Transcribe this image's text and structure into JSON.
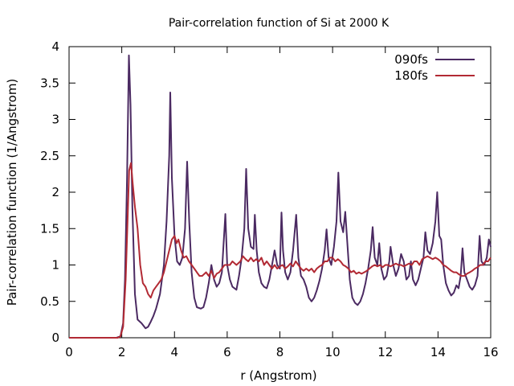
{
  "chart_data": {
    "type": "line",
    "title": "Pair-correlation function of Si at 2000 K",
    "xlabel": "r (Angstrom)",
    "ylabel": "Pair-correlation function (1/Angstrom)",
    "xlim": [
      0,
      16
    ],
    "ylim": [
      0,
      4
    ],
    "xticks": [
      "0",
      "2",
      "4",
      "6",
      "8",
      "10",
      "12",
      "14",
      "16"
    ],
    "yticks": [
      "0",
      "0.5",
      "1",
      "1.5",
      "2",
      "2.5",
      "3",
      "3.5",
      "4"
    ],
    "grid": false,
    "legend_position": "top-right",
    "series": [
      {
        "name": "090fs",
        "color": "#4b2a62",
        "points": [
          [
            0.0,
            0
          ],
          [
            1.8,
            0
          ],
          [
            1.95,
            0.02
          ],
          [
            2.05,
            0.2
          ],
          [
            2.12,
            0.8
          ],
          [
            2.2,
            2.2
          ],
          [
            2.27,
            3.88
          ],
          [
            2.33,
            3.2
          ],
          [
            2.4,
            1.8
          ],
          [
            2.5,
            0.6
          ],
          [
            2.6,
            0.25
          ],
          [
            2.75,
            0.2
          ],
          [
            2.9,
            0.13
          ],
          [
            3.0,
            0.15
          ],
          [
            3.1,
            0.22
          ],
          [
            3.2,
            0.3
          ],
          [
            3.3,
            0.4
          ],
          [
            3.45,
            0.6
          ],
          [
            3.6,
            1.0
          ],
          [
            3.7,
            1.6
          ],
          [
            3.8,
            2.5
          ],
          [
            3.84,
            3.37
          ],
          [
            3.9,
            2.2
          ],
          [
            4.0,
            1.4
          ],
          [
            4.1,
            1.05
          ],
          [
            4.2,
            1.0
          ],
          [
            4.3,
            1.1
          ],
          [
            4.4,
            1.5
          ],
          [
            4.48,
            2.42
          ],
          [
            4.56,
            1.6
          ],
          [
            4.65,
            0.9
          ],
          [
            4.75,
            0.55
          ],
          [
            4.85,
            0.42
          ],
          [
            5.0,
            0.4
          ],
          [
            5.1,
            0.42
          ],
          [
            5.2,
            0.55
          ],
          [
            5.3,
            0.75
          ],
          [
            5.4,
            1.0
          ],
          [
            5.5,
            0.8
          ],
          [
            5.6,
            0.7
          ],
          [
            5.7,
            0.75
          ],
          [
            5.8,
            0.9
          ],
          [
            5.93,
            1.7
          ],
          [
            6.0,
            1.0
          ],
          [
            6.1,
            0.8
          ],
          [
            6.2,
            0.7
          ],
          [
            6.35,
            0.66
          ],
          [
            6.45,
            0.85
          ],
          [
            6.55,
            1.1
          ],
          [
            6.65,
            1.5
          ],
          [
            6.72,
            2.32
          ],
          [
            6.8,
            1.5
          ],
          [
            6.9,
            1.25
          ],
          [
            7.0,
            1.22
          ],
          [
            7.05,
            1.69
          ],
          [
            7.12,
            1.2
          ],
          [
            7.2,
            0.9
          ],
          [
            7.3,
            0.75
          ],
          [
            7.4,
            0.7
          ],
          [
            7.5,
            0.68
          ],
          [
            7.6,
            0.8
          ],
          [
            7.7,
            1.0
          ],
          [
            7.8,
            1.2
          ],
          [
            7.9,
            1.0
          ],
          [
            8.0,
            0.95
          ],
          [
            8.06,
            1.72
          ],
          [
            8.12,
            1.2
          ],
          [
            8.2,
            0.9
          ],
          [
            8.3,
            0.8
          ],
          [
            8.4,
            0.9
          ],
          [
            8.5,
            1.2
          ],
          [
            8.62,
            1.69
          ],
          [
            8.7,
            1.1
          ],
          [
            8.8,
            0.85
          ],
          [
            8.9,
            0.8
          ],
          [
            9.0,
            0.7
          ],
          [
            9.1,
            0.55
          ],
          [
            9.2,
            0.5
          ],
          [
            9.3,
            0.55
          ],
          [
            9.4,
            0.65
          ],
          [
            9.5,
            0.78
          ],
          [
            9.6,
            0.95
          ],
          [
            9.7,
            1.2
          ],
          [
            9.77,
            1.49
          ],
          [
            9.85,
            1.1
          ],
          [
            9.95,
            1.0
          ],
          [
            10.05,
            1.25
          ],
          [
            10.15,
            1.6
          ],
          [
            10.22,
            2.27
          ],
          [
            10.3,
            1.6
          ],
          [
            10.4,
            1.45
          ],
          [
            10.48,
            1.73
          ],
          [
            10.56,
            1.3
          ],
          [
            10.65,
            0.8
          ],
          [
            10.75,
            0.55
          ],
          [
            10.85,
            0.48
          ],
          [
            10.95,
            0.45
          ],
          [
            11.05,
            0.5
          ],
          [
            11.15,
            0.6
          ],
          [
            11.25,
            0.75
          ],
          [
            11.35,
            0.95
          ],
          [
            11.45,
            1.2
          ],
          [
            11.52,
            1.52
          ],
          [
            11.6,
            1.1
          ],
          [
            11.7,
            1.0
          ],
          [
            11.77,
            1.3
          ],
          [
            11.85,
            0.95
          ],
          [
            11.95,
            0.8
          ],
          [
            12.05,
            0.85
          ],
          [
            12.15,
            1.05
          ],
          [
            12.2,
            1.25
          ],
          [
            12.3,
            1.0
          ],
          [
            12.4,
            0.85
          ],
          [
            12.5,
            0.95
          ],
          [
            12.6,
            1.15
          ],
          [
            12.7,
            1.05
          ],
          [
            12.8,
            0.8
          ],
          [
            12.9,
            0.85
          ],
          [
            12.97,
            1.05
          ],
          [
            13.05,
            0.8
          ],
          [
            13.15,
            0.72
          ],
          [
            13.25,
            0.8
          ],
          [
            13.35,
            0.95
          ],
          [
            13.45,
            1.1
          ],
          [
            13.52,
            1.45
          ],
          [
            13.6,
            1.2
          ],
          [
            13.7,
            1.15
          ],
          [
            13.8,
            1.3
          ],
          [
            13.9,
            1.6
          ],
          [
            13.97,
            2.0
          ],
          [
            14.05,
            1.4
          ],
          [
            14.12,
            1.35
          ],
          [
            14.2,
            1.0
          ],
          [
            14.3,
            0.75
          ],
          [
            14.4,
            0.65
          ],
          [
            14.5,
            0.58
          ],
          [
            14.6,
            0.62
          ],
          [
            14.7,
            0.72
          ],
          [
            14.78,
            0.68
          ],
          [
            14.86,
            0.85
          ],
          [
            14.93,
            1.23
          ],
          [
            15.0,
            0.9
          ],
          [
            15.1,
            0.8
          ],
          [
            15.2,
            0.7
          ],
          [
            15.3,
            0.66
          ],
          [
            15.4,
            0.72
          ],
          [
            15.5,
            0.85
          ],
          [
            15.58,
            1.4
          ],
          [
            15.65,
            1.05
          ],
          [
            15.75,
            1.0
          ],
          [
            15.85,
            1.1
          ],
          [
            15.93,
            1.35
          ],
          [
            16.0,
            1.25
          ]
        ]
      },
      {
        "name": "180fs",
        "color": "#b22a34",
        "points": [
          [
            0.0,
            0
          ],
          [
            1.85,
            0
          ],
          [
            1.95,
            0.02
          ],
          [
            2.05,
            0.15
          ],
          [
            2.15,
            0.8
          ],
          [
            2.22,
            1.6
          ],
          [
            2.28,
            2.3
          ],
          [
            2.35,
            2.4
          ],
          [
            2.42,
            2.1
          ],
          [
            2.5,
            1.8
          ],
          [
            2.6,
            1.5
          ],
          [
            2.7,
            1.0
          ],
          [
            2.8,
            0.75
          ],
          [
            2.9,
            0.7
          ],
          [
            3.0,
            0.6
          ],
          [
            3.1,
            0.55
          ],
          [
            3.2,
            0.65
          ],
          [
            3.3,
            0.7
          ],
          [
            3.4,
            0.75
          ],
          [
            3.5,
            0.8
          ],
          [
            3.6,
            0.9
          ],
          [
            3.7,
            1.05
          ],
          [
            3.8,
            1.2
          ],
          [
            3.9,
            1.35
          ],
          [
            4.0,
            1.4
          ],
          [
            4.08,
            1.3
          ],
          [
            4.15,
            1.35
          ],
          [
            4.25,
            1.2
          ],
          [
            4.35,
            1.1
          ],
          [
            4.45,
            1.12
          ],
          [
            4.55,
            1.05
          ],
          [
            4.65,
            1.0
          ],
          [
            4.75,
            0.95
          ],
          [
            4.85,
            0.9
          ],
          [
            4.95,
            0.85
          ],
          [
            5.05,
            0.85
          ],
          [
            5.2,
            0.9
          ],
          [
            5.3,
            0.85
          ],
          [
            5.4,
            0.92
          ],
          [
            5.5,
            0.82
          ],
          [
            5.6,
            0.88
          ],
          [
            5.7,
            0.9
          ],
          [
            5.8,
            0.95
          ],
          [
            5.9,
            1.0
          ],
          [
            6.0,
            1.0
          ],
          [
            6.1,
            1.0
          ],
          [
            6.2,
            1.05
          ],
          [
            6.35,
            1.0
          ],
          [
            6.5,
            1.05
          ],
          [
            6.6,
            1.12
          ],
          [
            6.7,
            1.08
          ],
          [
            6.8,
            1.05
          ],
          [
            6.9,
            1.1
          ],
          [
            7.0,
            1.05
          ],
          [
            7.1,
            1.08
          ],
          [
            7.2,
            1.05
          ],
          [
            7.3,
            1.1
          ],
          [
            7.4,
            1.0
          ],
          [
            7.5,
            1.05
          ],
          [
            7.6,
            1.0
          ],
          [
            7.7,
            0.95
          ],
          [
            7.8,
            1.0
          ],
          [
            7.9,
            0.95
          ],
          [
            8.0,
            0.98
          ],
          [
            8.1,
            1.0
          ],
          [
            8.2,
            0.95
          ],
          [
            8.3,
            0.98
          ],
          [
            8.4,
            1.02
          ],
          [
            8.5,
            0.98
          ],
          [
            8.6,
            1.05
          ],
          [
            8.7,
            1.0
          ],
          [
            8.8,
            0.95
          ],
          [
            8.9,
            0.92
          ],
          [
            9.0,
            0.95
          ],
          [
            9.1,
            0.92
          ],
          [
            9.2,
            0.95
          ],
          [
            9.3,
            0.9
          ],
          [
            9.4,
            0.95
          ],
          [
            9.5,
            0.98
          ],
          [
            9.6,
            1.0
          ],
          [
            9.7,
            1.05
          ],
          [
            9.8,
            1.05
          ],
          [
            9.9,
            1.1
          ],
          [
            10.0,
            1.1
          ],
          [
            10.1,
            1.05
          ],
          [
            10.2,
            1.08
          ],
          [
            10.3,
            1.05
          ],
          [
            10.4,
            1.0
          ],
          [
            10.5,
            0.98
          ],
          [
            10.6,
            0.95
          ],
          [
            10.7,
            0.9
          ],
          [
            10.8,
            0.92
          ],
          [
            10.9,
            0.88
          ],
          [
            11.0,
            0.9
          ],
          [
            11.1,
            0.88
          ],
          [
            11.2,
            0.9
          ],
          [
            11.3,
            0.92
          ],
          [
            11.4,
            0.95
          ],
          [
            11.5,
            0.98
          ],
          [
            11.6,
            1.0
          ],
          [
            11.7,
            0.98
          ],
          [
            11.8,
            1.0
          ],
          [
            11.9,
            0.97
          ],
          [
            12.0,
            1.0
          ],
          [
            12.1,
            1.0
          ],
          [
            12.2,
            0.98
          ],
          [
            12.3,
            1.0
          ],
          [
            12.4,
            1.02
          ],
          [
            12.5,
            1.0
          ],
          [
            12.6,
            1.0
          ],
          [
            12.7,
            0.98
          ],
          [
            12.8,
            1.0
          ],
          [
            12.9,
            1.02
          ],
          [
            13.0,
            1.0
          ],
          [
            13.1,
            1.05
          ],
          [
            13.2,
            1.05
          ],
          [
            13.3,
            1.0
          ],
          [
            13.4,
            1.08
          ],
          [
            13.5,
            1.1
          ],
          [
            13.6,
            1.12
          ],
          [
            13.7,
            1.1
          ],
          [
            13.8,
            1.08
          ],
          [
            13.9,
            1.1
          ],
          [
            14.0,
            1.08
          ],
          [
            14.1,
            1.05
          ],
          [
            14.2,
            1.0
          ],
          [
            14.3,
            0.98
          ],
          [
            14.4,
            0.95
          ],
          [
            14.5,
            0.92
          ],
          [
            14.6,
            0.9
          ],
          [
            14.7,
            0.9
          ],
          [
            14.8,
            0.87
          ],
          [
            14.9,
            0.85
          ],
          [
            15.0,
            0.85
          ],
          [
            15.1,
            0.88
          ],
          [
            15.2,
            0.9
          ],
          [
            15.3,
            0.92
          ],
          [
            15.4,
            0.95
          ],
          [
            15.5,
            0.97
          ],
          [
            15.6,
            1.0
          ],
          [
            15.7,
            1.0
          ],
          [
            15.8,
            1.05
          ],
          [
            15.9,
            1.05
          ],
          [
            16.0,
            1.1
          ]
        ]
      }
    ]
  }
}
